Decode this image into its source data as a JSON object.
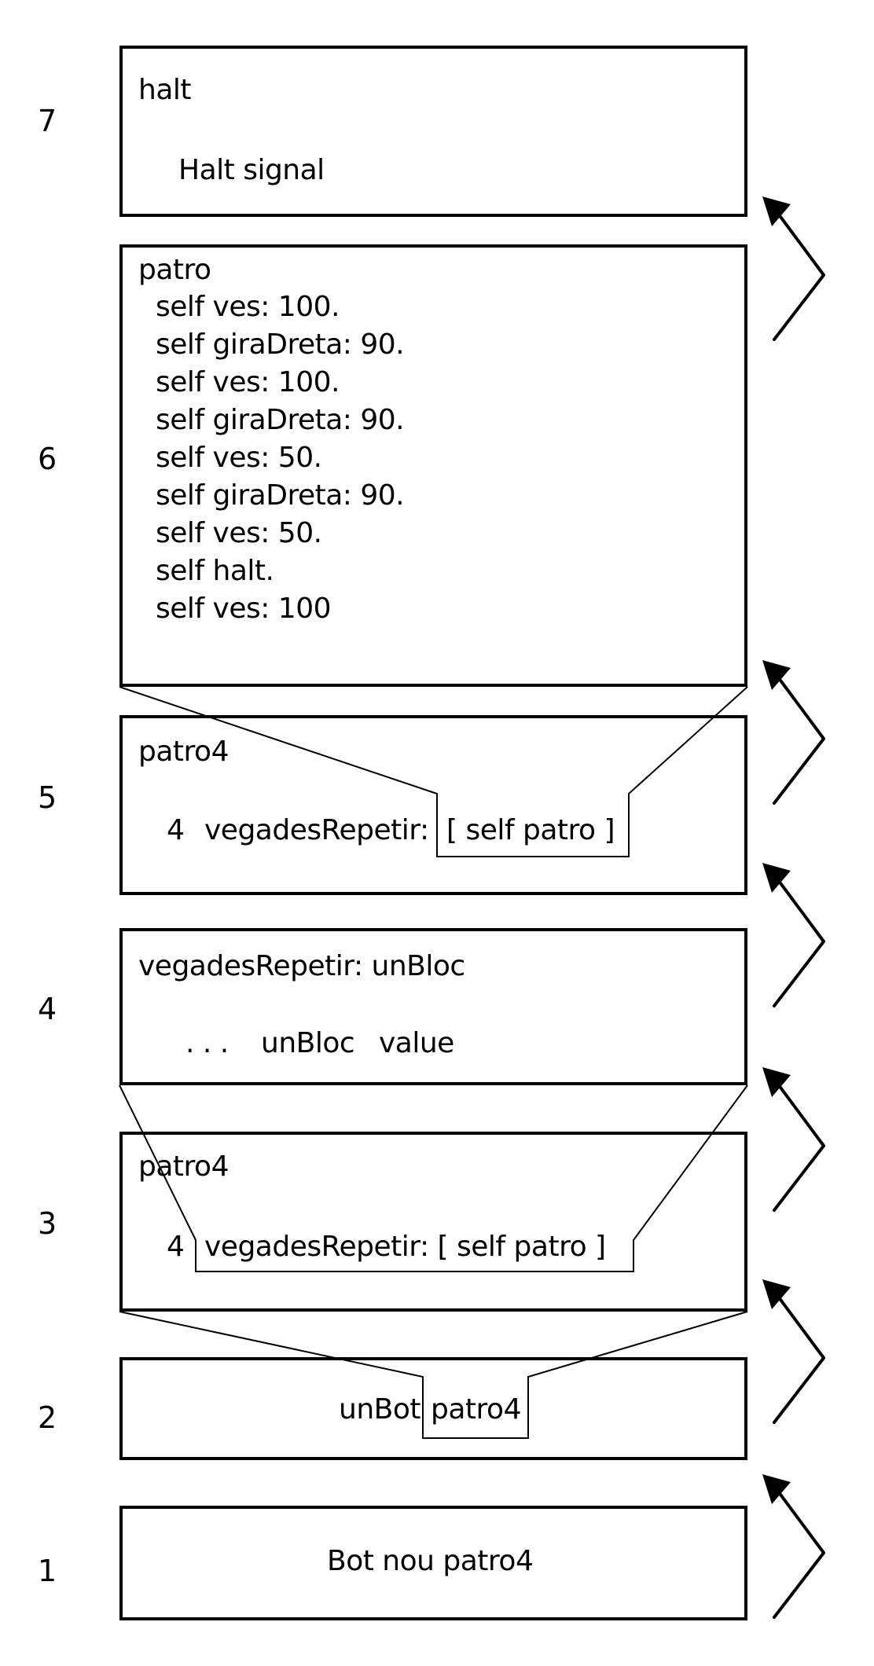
{
  "levels": [
    "1",
    "2",
    "3",
    "4",
    "5",
    "6",
    "7"
  ],
  "frame7": {
    "title": "halt",
    "body": "Halt signal"
  },
  "frame6": {
    "title": "patro",
    "lines": [
      "self ves: 100.",
      "self giraDreta: 90.",
      "self ves: 100.",
      "self giraDreta: 90.",
      "self ves: 50.",
      "self giraDreta: 90.",
      "self ves: 50.",
      "self halt.",
      "self ves: 100"
    ]
  },
  "frame5": {
    "title": "patro4",
    "count": "4",
    "message": "vegadesRepetir:",
    "block": "[ self patro ]"
  },
  "frame4": {
    "title": "vegadesRepetir: unBloc",
    "dots": ". . .",
    "arg": "unBloc",
    "selector": "value"
  },
  "frame3": {
    "title": "patro4",
    "count": "4",
    "message": "vegadesRepetir: [ self patro ]"
  },
  "frame2": {
    "receiver": "unBot",
    "message": "patro4"
  },
  "frame1": {
    "expression": "Bot nou patro4"
  }
}
